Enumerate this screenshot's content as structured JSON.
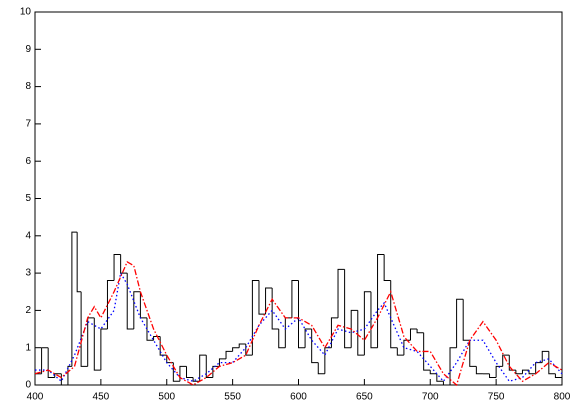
{
  "chart_data": {
    "type": "line",
    "xlim": [
      400,
      800
    ],
    "ylim": [
      0,
      10
    ],
    "xticks": [
      400,
      450,
      500,
      550,
      600,
      650,
      700,
      750,
      800
    ],
    "yticks": [
      0,
      1,
      2,
      3,
      4,
      5,
      6,
      7,
      8,
      9,
      10
    ],
    "series": [
      {
        "color": "#000000",
        "drawstyle": "steps",
        "dash": "none",
        "x": [
          400,
          405,
          410,
          415,
          420,
          425,
          428,
          432,
          435,
          440,
          445,
          450,
          455,
          460,
          465,
          470,
          475,
          480,
          485,
          490,
          495,
          500,
          505,
          510,
          515,
          520,
          525,
          530,
          535,
          540,
          545,
          550,
          555,
          560,
          565,
          570,
          575,
          580,
          585,
          590,
          595,
          600,
          605,
          610,
          615,
          620,
          625,
          630,
          635,
          640,
          645,
          650,
          655,
          660,
          665,
          670,
          675,
          680,
          685,
          690,
          695,
          700,
          705,
          710,
          715,
          720,
          725,
          730,
          735,
          740,
          745,
          750,
          755,
          760,
          765,
          770,
          775,
          780,
          785,
          790,
          795,
          800
        ],
        "values": [
          0.3,
          1.0,
          0.2,
          0.3,
          0,
          0.5,
          4.1,
          2.5,
          0.5,
          1.8,
          0.4,
          1.5,
          2.8,
          3.5,
          3.0,
          1.5,
          2.5,
          1.8,
          1.2,
          1.3,
          0.8,
          0.6,
          0.1,
          0.5,
          0.2,
          0.1,
          0.8,
          0.2,
          0.5,
          0.7,
          0.9,
          1.0,
          1.1,
          0.8,
          2.8,
          1.9,
          2.6,
          1.5,
          1.0,
          1.8,
          2.8,
          1.0,
          1.5,
          0.6,
          0.3,
          1.0,
          1.8,
          3.1,
          1.0,
          2.0,
          0.8,
          2.5,
          1.0,
          3.5,
          2.8,
          1.0,
          0.8,
          1.2,
          1.5,
          1.4,
          0.4,
          0.3,
          0.1,
          0,
          1.0,
          2.3,
          1.2,
          0.5,
          0.3,
          0.3,
          0.2,
          0.5,
          0.8,
          0.4,
          0.3,
          0.4,
          0.3,
          0.6,
          0.9,
          0.3,
          0.2,
          0.1
        ]
      },
      {
        "color": "#0000ff",
        "drawstyle": "linear",
        "dash": "1.5 2.5",
        "x": [
          400,
          410,
          420,
          430,
          440,
          450,
          460,
          465,
          470,
          480,
          490,
          500,
          510,
          520,
          530,
          540,
          550,
          560,
          570,
          580,
          590,
          600,
          610,
          620,
          630,
          640,
          650,
          660,
          665,
          670,
          680,
          690,
          700,
          710,
          720,
          730,
          740,
          750,
          760,
          770,
          780,
          790,
          800
        ],
        "values": [
          0.4,
          0.4,
          0.1,
          0.8,
          1.7,
          1.5,
          2.0,
          3.0,
          2.7,
          1.8,
          1.2,
          0.6,
          0.2,
          0.1,
          0.3,
          0.6,
          0.6,
          1.0,
          1.6,
          2.0,
          1.5,
          1.8,
          1.2,
          0.8,
          1.5,
          1.4,
          1.5,
          2.0,
          2.2,
          1.8,
          1.0,
          0.9,
          0.5,
          0.1,
          0.6,
          1.2,
          1.2,
          0.6,
          0.1,
          0.2,
          0.6,
          0.7,
          0.3
        ]
      },
      {
        "color": "#ff0000",
        "drawstyle": "linear",
        "dash": "6 2 1.5 2",
        "x": [
          400,
          410,
          420,
          430,
          440,
          445,
          450,
          460,
          470,
          475,
          480,
          490,
          500,
          510,
          520,
          530,
          540,
          550,
          560,
          570,
          580,
          590,
          600,
          610,
          620,
          630,
          640,
          650,
          660,
          670,
          680,
          690,
          700,
          710,
          720,
          730,
          740,
          750,
          760,
          770,
          780,
          790,
          800
        ],
        "values": [
          0.3,
          0.4,
          0.2,
          0.5,
          1.8,
          2.1,
          1.8,
          2.5,
          3.3,
          3.2,
          2.5,
          1.5,
          0.8,
          0.2,
          0.0,
          0.2,
          0.5,
          0.6,
          0.8,
          1.6,
          2.3,
          1.8,
          1.8,
          1.6,
          1.0,
          1.6,
          1.5,
          1.2,
          1.8,
          2.5,
          1.3,
          0.9,
          0.9,
          0.3,
          0.0,
          1.2,
          1.7,
          1.2,
          0.5,
          0.1,
          0.3,
          0.6,
          0.4
        ]
      }
    ]
  }
}
